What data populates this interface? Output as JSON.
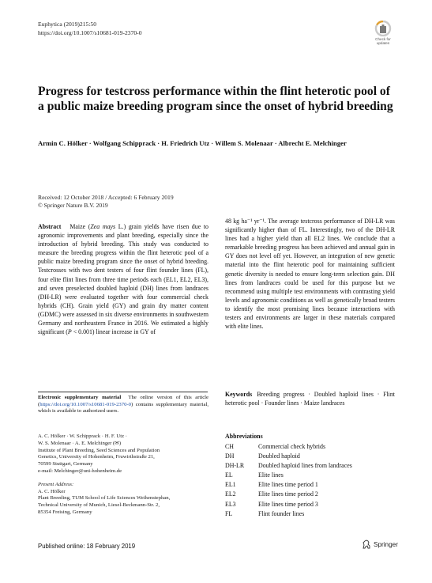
{
  "header": {
    "journal_line": "Euphytica (2019)215:50",
    "doi_line": "https://doi.org/10.1007/s10681-019-2370-0",
    "badge_label_1": "Check for",
    "badge_label_2": "updates"
  },
  "article": {
    "title": "Progress for testcross performance within the flint heterotic pool of a public maize breeding program since the onset of hybrid breeding",
    "authors": "Armin C. Hölker · Wolfgang Schipprack · H. Friedrich Utz · Willem S. Molenaar · Albrecht E. Melchinger",
    "received": "Received: 12 October 2018 / Accepted: 6 February 2019",
    "copyright": "© Springer Nature B.V. 2019"
  },
  "abstract": {
    "heading": "Abstract",
    "part1_a": "Maize (",
    "part1_species": "Zea mays",
    "part1_b": " L.) grain yields have risen due to agronomic improvements and plant breeding, especially since the introduction of hybrid breeding. This study was conducted to measure the breeding progress within the flint heterotic pool of a public maize breeding program since the onset of hybrid breeding. Testcrosses with two dent testers of four flint founder lines (FL), four elite flint lines from three time periods each (EL1, EL2, EL3), and seven preselected doubled haploid (DH) lines from landraces (DH-LR) were evaluated together with four commercial check hybrids (CH). Grain yield (GY) and grain dry matter content (GDMC) were assessed in six diverse environments in southwestern Germany and northeastern France in 2016. We estimated a highly significant (",
    "part1_p": "P",
    "part1_c": " < 0.001) linear increase in GY of",
    "part2": "48 kg ha⁻¹ yr⁻¹. The average testcross performance of DH-LR was significantly higher than of FL. Interestingly, two of the DH-LR lines had a higher yield than all EL2 lines. We conclude that a remarkable breeding progress has been achieved and annual gain in GY does not level off yet. However, an integration of new genetic material into the flint heterotic pool for maintaining sufficient genetic diversity is needed to ensure long-term selection gain. DH lines from landraces could be used for this purpose but we recommend using multiple test environments with contrasting yield levels and agronomic conditions as well as genetically broad testers to identify the most promising lines because interactions with testers and environments are larger in these materials compared with elite lines."
  },
  "esm": {
    "label": "Electronic supplementary material",
    "text_a": "The online version of this article (",
    "link": "https://doi.org/10.1007/s10681-019-2370-0",
    "text_b": ") contains supplementary material, which is available to authorized users."
  },
  "affiliation": {
    "names_1": "A. C. Hölker · W. Schipprack · H. F. Utz ·",
    "names_2": "W. S. Molenaar · A. E. Melchinger (✉)",
    "inst_1": "Institute of Plant Breeding, Seed Sciences and Population",
    "inst_2": "Genetics, University of Hohenheim, Fruwirthstraße 21,",
    "inst_3": "70599 Stuttgart, Germany",
    "email": "e-mail: Melchinger@uni-hohenheim.de",
    "present_label": "Present Address:",
    "present_name": "A. C. Hölker",
    "present_1": "Plant Breeding, TUM School of Life Sciences Weihenstephan,",
    "present_2": "Technical University of Munich, Liesel-Beckmann-Str. 2,",
    "present_3": "85354 Freising, Germany"
  },
  "keywords": {
    "label": "Keywords",
    "text": "Breeding progress · Doubled haploid lines · Flint heterotic pool · Founder lines · Maize landraces"
  },
  "abbreviations": {
    "title": "Abbreviations",
    "items": [
      {
        "code": "CH",
        "desc": "Commercial check hybrids"
      },
      {
        "code": "DH",
        "desc": "Doubled haploid"
      },
      {
        "code": "DH-LR",
        "desc": "Doubled haploid lines from landraces"
      },
      {
        "code": "EL",
        "desc": "Elite lines"
      },
      {
        "code": "EL1",
        "desc": "Elite lines time period 1"
      },
      {
        "code": "EL2",
        "desc": "Elite lines time period 2"
      },
      {
        "code": "EL3",
        "desc": "Elite lines time period 3"
      },
      {
        "code": "FL",
        "desc": "Flint founder lines"
      }
    ]
  },
  "footer": {
    "published": "Published online: 18 February 2019",
    "publisher": "Springer"
  },
  "colors": {
    "link": "#1a4da3",
    "text": "#111111"
  }
}
